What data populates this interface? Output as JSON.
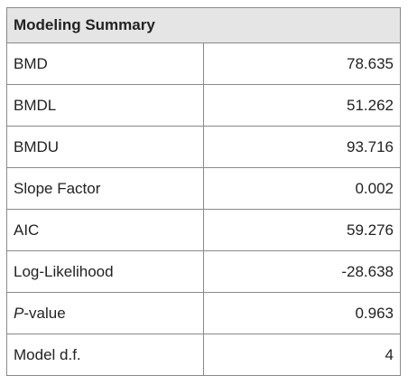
{
  "table": {
    "title": "Modeling Summary",
    "rows": [
      {
        "label": "BMD",
        "value": "78.635"
      },
      {
        "label": "BMDL",
        "value": "51.262"
      },
      {
        "label": "BMDU",
        "value": "93.716"
      },
      {
        "label": "Slope Factor",
        "value": "0.002"
      },
      {
        "label": "AIC",
        "value": "59.276"
      },
      {
        "label": "Log-Likelihood",
        "value": "-28.638"
      },
      {
        "label_italic": "P",
        "label_suffix": "-value",
        "value": "0.963"
      },
      {
        "label": "Model d.f.",
        "value": "4"
      }
    ]
  }
}
